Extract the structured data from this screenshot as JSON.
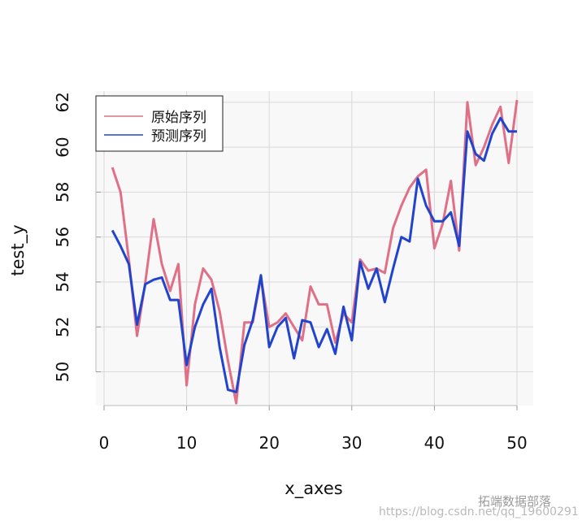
{
  "chart_data": {
    "type": "line",
    "title": "",
    "xlabel": "x_axes",
    "ylabel": "test_y",
    "xlim": [
      0,
      50
    ],
    "ylim": [
      48.5,
      62.5
    ],
    "x_ticks": [
      "0",
      "10",
      "20",
      "30",
      "40",
      "50"
    ],
    "y_ticks": [
      "50",
      "52",
      "54",
      "56",
      "58",
      "60",
      "62"
    ],
    "grid": true,
    "legend_position": "top-left",
    "x": [
      1,
      2,
      3,
      4,
      5,
      6,
      7,
      8,
      9,
      10,
      11,
      12,
      13,
      14,
      15,
      16,
      17,
      18,
      19,
      20,
      21,
      22,
      23,
      24,
      25,
      26,
      27,
      28,
      29,
      30,
      31,
      32,
      33,
      34,
      35,
      36,
      37,
      38,
      39,
      40,
      41,
      42,
      43,
      44,
      45,
      46,
      47,
      48,
      49,
      50
    ],
    "series": [
      {
        "name": "原始序列",
        "color": "#df7087",
        "values": [
          59.1,
          58.0,
          55.0,
          51.6,
          54.0,
          56.8,
          54.8,
          53.6,
          54.8,
          49.4,
          53.0,
          54.6,
          54.1,
          52.7,
          50.5,
          48.6,
          52.2,
          52.2,
          54.2,
          52.0,
          52.2,
          52.6,
          52.0,
          51.4,
          53.8,
          53.0,
          53.0,
          51.3,
          52.6,
          52.2,
          55.0,
          54.5,
          54.6,
          54.4,
          56.4,
          57.4,
          58.2,
          58.7,
          59.0,
          55.5,
          56.6,
          58.5,
          55.4,
          62.0,
          59.2,
          60.0,
          61.0,
          61.8,
          59.3,
          62.1
        ]
      },
      {
        "name": "预测序列",
        "color": "#2244cc",
        "values": [
          56.3,
          55.6,
          54.8,
          52.1,
          53.9,
          54.1,
          54.2,
          53.2,
          53.2,
          50.3,
          52.0,
          53.0,
          53.7,
          51.1,
          49.2,
          49.1,
          51.2,
          52.3,
          54.3,
          51.1,
          52.0,
          52.4,
          50.6,
          52.3,
          52.2,
          51.1,
          51.9,
          50.8,
          52.9,
          51.4,
          54.9,
          53.7,
          54.6,
          53.1,
          54.6,
          56.0,
          55.8,
          58.6,
          57.4,
          56.7,
          56.7,
          57.1,
          55.6,
          60.7,
          59.7,
          59.4,
          60.6,
          61.3,
          60.7,
          60.7
        ]
      }
    ]
  },
  "watermark": {
    "brand": "拓端数据部落",
    "url": "https://blog.csdn.net/qq_19600291"
  }
}
